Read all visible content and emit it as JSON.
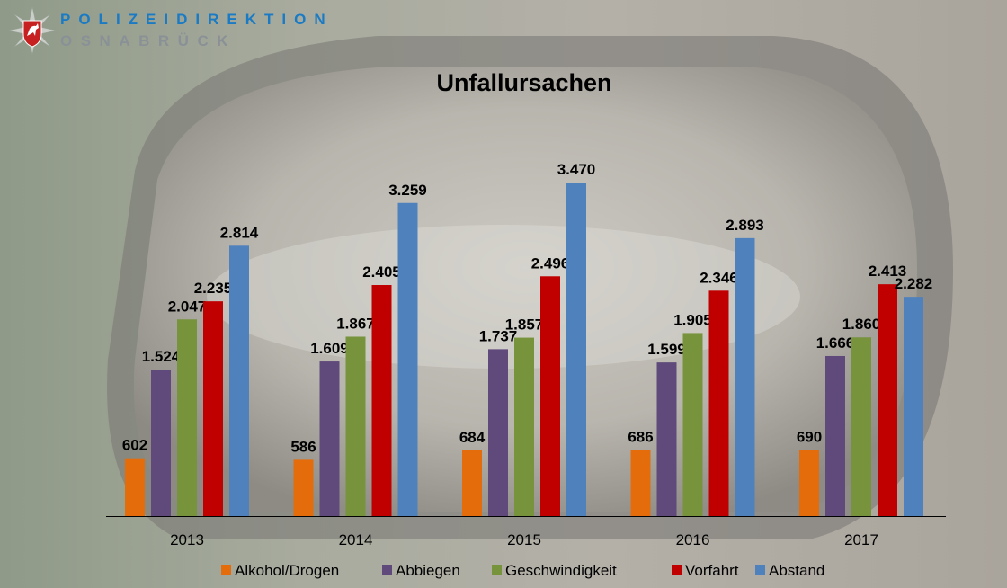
{
  "branding": {
    "line1": "POLIZEIDIREKTION",
    "line2": "OSNABRÜCK"
  },
  "chart_data": {
    "type": "bar",
    "title": "Unfallursachen",
    "categories": [
      "2013",
      "2014",
      "2015",
      "2016",
      "2017"
    ],
    "series": [
      {
        "name": "Alkohol/Drogen",
        "color": "#e46c0a",
        "values": [
          602,
          586,
          684,
          686,
          690
        ],
        "labels": [
          "602",
          "586",
          "684",
          "686",
          "690"
        ]
      },
      {
        "name": "Abbiegen",
        "color": "#604a7b",
        "values": [
          1524,
          1609,
          1737,
          1599,
          1666
        ],
        "labels": [
          "1.524",
          "1.609",
          "1.737",
          "1.599",
          "1.666"
        ]
      },
      {
        "name": "Geschwindigkeit",
        "color": "#77933c",
        "values": [
          2047,
          1867,
          1857,
          1905,
          1860
        ],
        "labels": [
          "2.047",
          "1.867",
          "1.857",
          "1.905",
          "1.860"
        ]
      },
      {
        "name": "Vorfahrt",
        "color": "#c00000",
        "values": [
          2235,
          2405,
          2496,
          2346,
          2413
        ],
        "labels": [
          "2.235",
          "2.405",
          "2.496",
          "2.346",
          "2.413"
        ]
      },
      {
        "name": "Abstand",
        "color": "#4f81bd",
        "values": [
          2814,
          3259,
          3470,
          2893,
          2282
        ],
        "labels": [
          "2.814",
          "3.259",
          "3.470",
          "2.893",
          "2.282"
        ]
      }
    ],
    "xlabel": "",
    "ylabel": "",
    "ylim": [
      0,
      3500
    ],
    "grid": false,
    "legend": "bottom"
  }
}
